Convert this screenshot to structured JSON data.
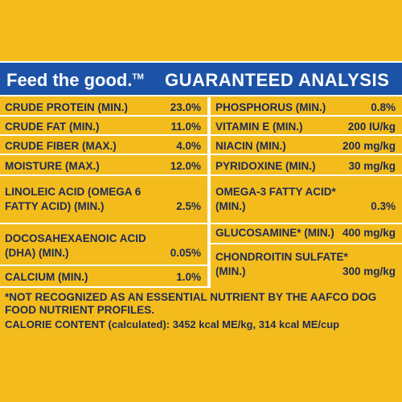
{
  "banner": {
    "slogan": "Feed the good.",
    "slogan_tm": "TM",
    "title": "GUARANTEED ANALYSIS"
  },
  "left": [
    {
      "label": "CRUDE PROTEIN (MIN.)",
      "value": "23.0%"
    },
    {
      "label": "CRUDE FAT (MIN.)",
      "value": "11.0%"
    },
    {
      "label": "CRUDE FIBER (MAX.)",
      "value": "4.0%"
    },
    {
      "label": "MOISTURE (MAX.)",
      "value": "12.0%"
    },
    {
      "label_line1": "LINOLEIC ACID (OMEGA 6",
      "label_line2": "FATTY ACID) (MIN.)",
      "value": "2.5%"
    },
    {
      "label_line1": "DOCOSAHEXAENOIC ACID",
      "label_line2": "(DHA) (MIN.)",
      "value": "0.05%"
    },
    {
      "label": "CALCIUM (MIN.)",
      "value": "1.0%"
    }
  ],
  "right": [
    {
      "label": "PHOSPHORUS (MIN.)",
      "value": "0.8%"
    },
    {
      "label": "VITAMIN E (MIN.)",
      "value": "200 IU/kg"
    },
    {
      "label": "NIACIN (MIN.)",
      "value": "200 mg/kg"
    },
    {
      "label": "PYRIDOXINE (MIN.)",
      "value": "30 mg/kg"
    },
    {
      "label_line1": "OMEGA-3 FATTY ACID*",
      "label_line2": "(MIN.)",
      "value": "0.3%"
    },
    {
      "label": "GLUCOSAMINE* (MIN.)",
      "value": "400 mg/kg"
    },
    {
      "label_line1": "CHONDROITIN SULFATE*",
      "label_line2": "(MIN.)",
      "value": "300 mg/kg"
    }
  ],
  "footer": {
    "note_line1": "*NOT RECOGNIZED AS AN ESSENTIAL NUTRIENT BY THE AAFCO DOG",
    "note_line2": "FOOD NUTRIENT PROFILES.",
    "calorie": "CALORIE CONTENT (calculated): 3452 kcal ME/kg, 314 kcal ME/cup"
  },
  "colors": {
    "background": "#f3bc1c",
    "banner": "#1c53a6",
    "text": "#1e2a55",
    "rule": "#ffffff"
  }
}
